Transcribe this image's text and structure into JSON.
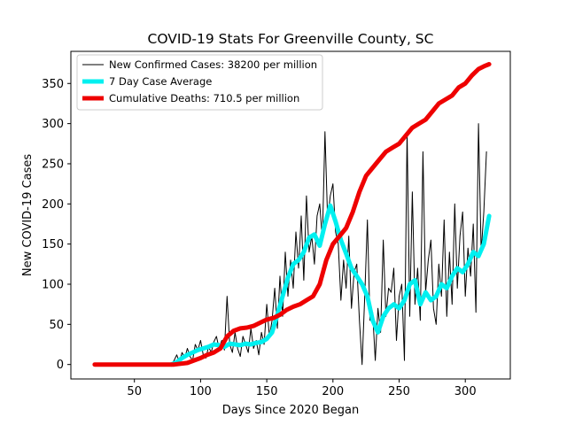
{
  "chart_data": {
    "type": "line",
    "title": "COVID-19 Stats For Greenville County, SC",
    "xlabel": "Days Since 2020 Began",
    "ylabel": "New COVID-19 Cases",
    "xlim": [
      2,
      334
    ],
    "ylim": [
      -18,
      390
    ],
    "xticks": [
      50,
      100,
      150,
      200,
      250,
      300
    ],
    "yticks": [
      0,
      50,
      100,
      150,
      200,
      250,
      300,
      350
    ],
    "grid": false,
    "legend_placement": "top-left",
    "series": [
      {
        "name": "New Confirmed Cases: 38200 per million",
        "color": "#000000",
        "style": "thin",
        "x": [
          78,
          80,
          82,
          84,
          86,
          88,
          90,
          92,
          94,
          96,
          98,
          100,
          102,
          104,
          106,
          108,
          110,
          112,
          114,
          116,
          118,
          120,
          122,
          124,
          126,
          128,
          130,
          132,
          134,
          136,
          138,
          140,
          142,
          144,
          146,
          148,
          150,
          152,
          154,
          156,
          158,
          160,
          162,
          164,
          166,
          168,
          170,
          172,
          174,
          176,
          178,
          180,
          182,
          184,
          186,
          188,
          190,
          192,
          194,
          196,
          198,
          200,
          202,
          204,
          206,
          208,
          210,
          212,
          214,
          216,
          218,
          220,
          222,
          224,
          226,
          228,
          230,
          232,
          234,
          236,
          238,
          240,
          242,
          244,
          246,
          248,
          250,
          252,
          254,
          256,
          258,
          260,
          262,
          264,
          266,
          268,
          270,
          272,
          274,
          276,
          278,
          280,
          282,
          284,
          286,
          288,
          290,
          292,
          294,
          296,
          298,
          300,
          302,
          304,
          306,
          308,
          310,
          312,
          314,
          316
        ],
        "values": [
          0,
          5,
          12,
          3,
          15,
          8,
          20,
          10,
          5,
          25,
          18,
          30,
          12,
          8,
          22,
          15,
          28,
          35,
          20,
          30,
          18,
          85,
          25,
          15,
          40,
          20,
          10,
          35,
          25,
          15,
          45,
          20,
          30,
          12,
          40,
          25,
          75,
          35,
          55,
          95,
          45,
          110,
          60,
          140,
          85,
          130,
          95,
          165,
          120,
          185,
          105,
          210,
          140,
          160,
          125,
          185,
          200,
          155,
          290,
          180,
          210,
          225,
          165,
          150,
          80,
          130,
          95,
          160,
          70,
          115,
          125,
          55,
          0,
          85,
          180,
          55,
          65,
          5,
          70,
          40,
          155,
          60,
          95,
          90,
          120,
          30,
          85,
          100,
          5,
          290,
          60,
          215,
          75,
          120,
          55,
          265,
          90,
          130,
          155,
          70,
          50,
          125,
          85,
          180,
          60,
          140,
          75,
          200,
          95,
          160,
          190,
          85,
          145,
          110,
          175,
          65,
          300,
          140,
          190,
          265
        ]
      },
      {
        "name": "7 Day Case Average",
        "color": "#00f0f0",
        "style": "thick",
        "x": [
          78,
          82,
          86,
          90,
          94,
          98,
          102,
          106,
          110,
          114,
          118,
          122,
          126,
          130,
          134,
          138,
          142,
          146,
          150,
          154,
          158,
          162,
          166,
          170,
          174,
          178,
          182,
          186,
          190,
          194,
          198,
          202,
          206,
          210,
          214,
          218,
          222,
          226,
          230,
          234,
          238,
          242,
          246,
          250,
          254,
          258,
          262,
          266,
          270,
          274,
          278,
          282,
          286,
          290,
          294,
          298,
          302,
          306,
          310,
          314,
          318
        ],
        "values": [
          0,
          3,
          8,
          12,
          15,
          18,
          20,
          22,
          25,
          24,
          22,
          26,
          25,
          24,
          26,
          25,
          27,
          28,
          32,
          40,
          62,
          85,
          108,
          125,
          130,
          140,
          158,
          162,
          148,
          175,
          198,
          178,
          155,
          138,
          120,
          110,
          100,
          85,
          55,
          40,
          60,
          70,
          75,
          70,
          80,
          100,
          105,
          75,
          90,
          80,
          85,
          100,
          95,
          110,
          120,
          115,
          125,
          140,
          135,
          150,
          185
        ]
      },
      {
        "name": "Cumulative Deaths: 710.5 per million",
        "color": "#ee0000",
        "style": "thick",
        "x": [
          20,
          40,
          60,
          80,
          90,
          95,
          100,
          105,
          110,
          115,
          120,
          125,
          130,
          135,
          140,
          145,
          150,
          155,
          160,
          165,
          170,
          175,
          180,
          185,
          190,
          195,
          200,
          205,
          210,
          215,
          220,
          225,
          230,
          235,
          240,
          245,
          250,
          255,
          260,
          265,
          270,
          275,
          280,
          285,
          290,
          295,
          300,
          305,
          310,
          315,
          318
        ],
        "values": [
          0,
          0,
          0,
          0,
          2,
          5,
          8,
          12,
          15,
          20,
          35,
          42,
          45,
          46,
          48,
          52,
          56,
          58,
          62,
          68,
          72,
          75,
          80,
          85,
          100,
          130,
          150,
          160,
          170,
          190,
          215,
          235,
          245,
          255,
          265,
          270,
          275,
          285,
          295,
          300,
          305,
          315,
          325,
          330,
          335,
          345,
          350,
          360,
          368,
          372,
          374
        ]
      }
    ]
  }
}
